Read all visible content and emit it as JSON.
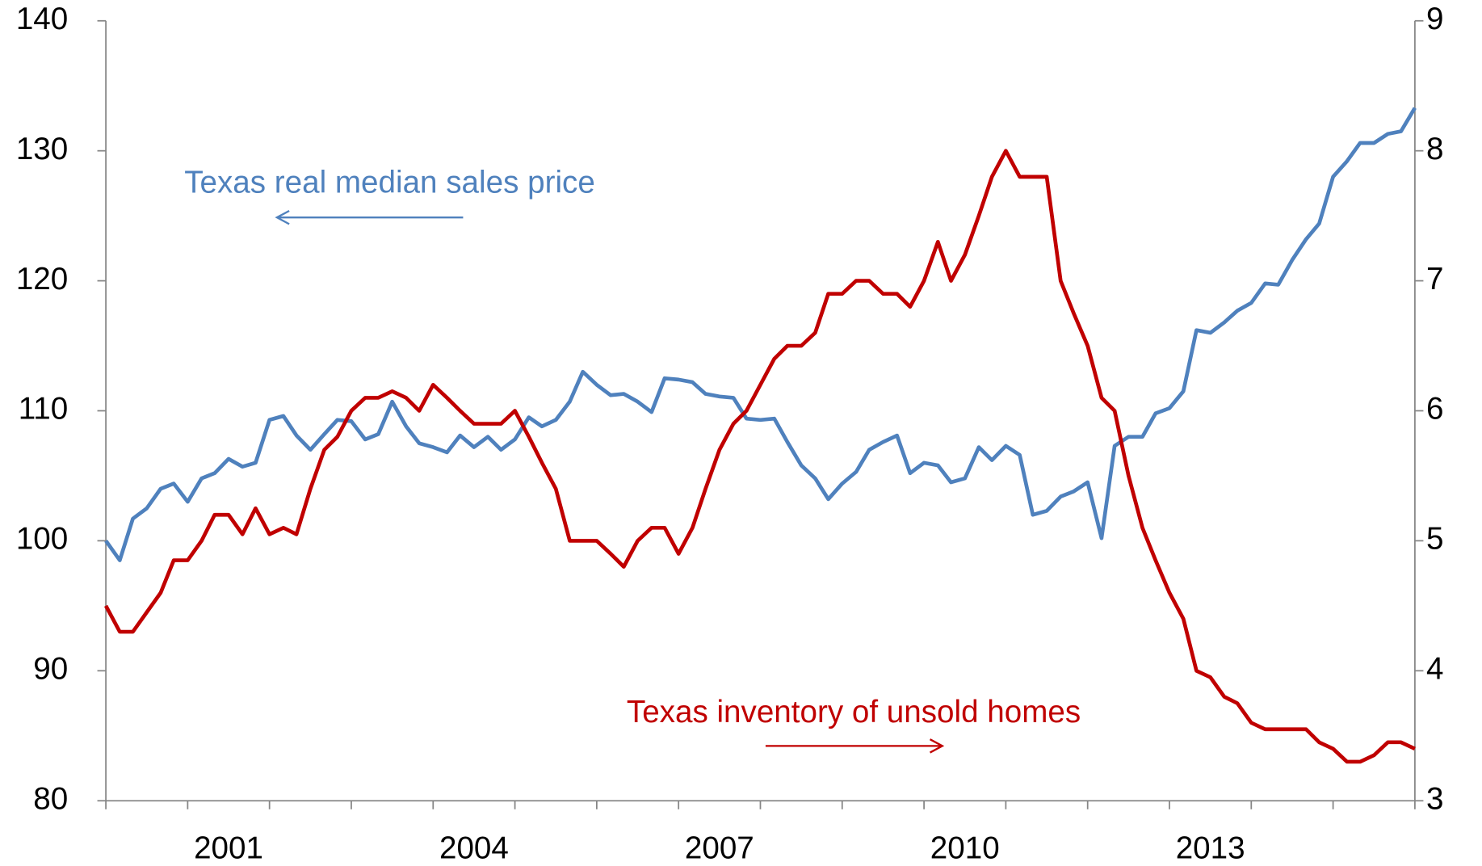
{
  "chart_data": {
    "type": "line",
    "annotations": [
      "Texas real median sales price",
      "Texas inventory of unsold homes"
    ],
    "xlim": [
      2000,
      2016
    ],
    "xticks": [
      2000,
      2001,
      2002,
      2003,
      2004,
      2005,
      2006,
      2007,
      2008,
      2009,
      2010,
      2011,
      2012,
      2013,
      2014,
      2015,
      2016
    ],
    "xtick_labels": [
      {
        "value": 2001.5,
        "label": "2001"
      },
      {
        "value": 2004.5,
        "label": "2004"
      },
      {
        "value": 2007.5,
        "label": "2007"
      },
      {
        "value": 2010.5,
        "label": "2010"
      },
      {
        "value": 2013.5,
        "label": "2013"
      }
    ],
    "ylim": [
      80,
      140
    ],
    "yticks": [
      80,
      90,
      100,
      110,
      120,
      130,
      140
    ],
    "y2lim": [
      3,
      9
    ],
    "y2ticks": [
      3,
      4,
      5,
      6,
      7,
      8,
      9
    ],
    "x": [
      2000,
      2000.17,
      2000.33,
      2000.5,
      2000.67,
      2000.83,
      2001,
      2001.17,
      2001.33,
      2001.5,
      2001.67,
      2001.83,
      2002,
      2002.17,
      2002.33,
      2002.5,
      2002.67,
      2002.83,
      2003,
      2003.17,
      2003.33,
      2003.5,
      2003.67,
      2003.83,
      2004,
      2004.17,
      2004.33,
      2004.5,
      2004.67,
      2004.83,
      2005,
      2005.17,
      2005.33,
      2005.5,
      2005.67,
      2005.83,
      2006,
      2006.17,
      2006.33,
      2006.5,
      2006.67,
      2006.83,
      2007,
      2007.17,
      2007.33,
      2007.5,
      2007.67,
      2007.83,
      2008,
      2008.17,
      2008.33,
      2008.5,
      2008.67,
      2008.83,
      2009,
      2009.17,
      2009.33,
      2009.5,
      2009.67,
      2009.83,
      2010,
      2010.17,
      2010.33,
      2010.5,
      2010.67,
      2010.83,
      2011,
      2011.17,
      2011.33,
      2011.5,
      2011.67,
      2011.83,
      2012,
      2012.17,
      2012.33,
      2012.5,
      2012.67,
      2012.83,
      2013,
      2013.17,
      2013.33,
      2013.5,
      2013.67,
      2013.83,
      2014,
      2014.17,
      2014.33,
      2014.5,
      2014.67,
      2014.83,
      2015,
      2015.17,
      2015.33,
      2015.5,
      2015.67,
      2015.83,
      2016
    ],
    "series": [
      {
        "name": "Texas real median sales price",
        "color": "#4f81bd",
        "axis": "y",
        "values": [
          100,
          98.5,
          101.7,
          102.5,
          104,
          104.4,
          103,
          104.8,
          105.2,
          106.3,
          105.7,
          106,
          109.3,
          109.6,
          108.1,
          107,
          108.2,
          109.3,
          109.2,
          107.8,
          108.2,
          110.7,
          108.8,
          107.5,
          107.2,
          106.8,
          108.1,
          107.2,
          108,
          107,
          107.8,
          109.5,
          108.8,
          109.3,
          110.7,
          113,
          112,
          111.2,
          111.3,
          110.7,
          109.9,
          112.5,
          112.4,
          112.2,
          111.3,
          111.1,
          111,
          109.4,
          109.3,
          109.4,
          107.6,
          105.8,
          104.8,
          103.2,
          104.4,
          105.3,
          107,
          107.6,
          108.1,
          105.2,
          106,
          105.8,
          104.5,
          104.8,
          107.2,
          106.2,
          107.3,
          106.6,
          102,
          102.3,
          103.4,
          103.8,
          104.5,
          100.2,
          107.3,
          108,
          108,
          109.8,
          110.2,
          111.5,
          116.2,
          116,
          116.8,
          117.7,
          118.3,
          119.8,
          119.7,
          121.6,
          123.2,
          124.4,
          128,
          129.2,
          130.6,
          130.6,
          131.3,
          131.5,
          133.3
        ]
      },
      {
        "name": "Texas inventory of unsold homes",
        "color": "#c00000",
        "axis": "y2",
        "values": [
          4.5,
          4.3,
          4.3,
          4.45,
          4.6,
          4.85,
          4.85,
          5,
          5.2,
          5.2,
          5.05,
          5.25,
          5.05,
          5.1,
          5.05,
          5.4,
          5.7,
          5.8,
          6,
          6.1,
          6.1,
          6.15,
          6.1,
          6,
          6.2,
          6.1,
          6,
          5.9,
          5.9,
          5.9,
          6,
          5.8,
          5.6,
          5.4,
          5,
          5,
          5,
          4.9,
          4.8,
          5,
          5.1,
          5.1,
          4.9,
          5.1,
          5.4,
          5.7,
          5.9,
          6,
          6.2,
          6.4,
          6.5,
          6.5,
          6.6,
          6.9,
          6.9,
          7,
          7,
          6.9,
          6.9,
          6.8,
          7,
          7.3,
          7,
          7.2,
          7.5,
          7.8,
          8,
          7.8,
          7.8,
          7.8,
          7,
          6.75,
          6.5,
          6.1,
          6,
          5.5,
          5.1,
          4.85,
          4.6,
          4.4,
          4,
          3.95,
          3.8,
          3.75,
          3.6,
          3.55,
          3.55,
          3.55,
          3.55,
          3.45,
          3.4,
          3.3,
          3.3,
          3.35,
          3.45,
          3.45,
          3.4
        ]
      }
    ]
  }
}
